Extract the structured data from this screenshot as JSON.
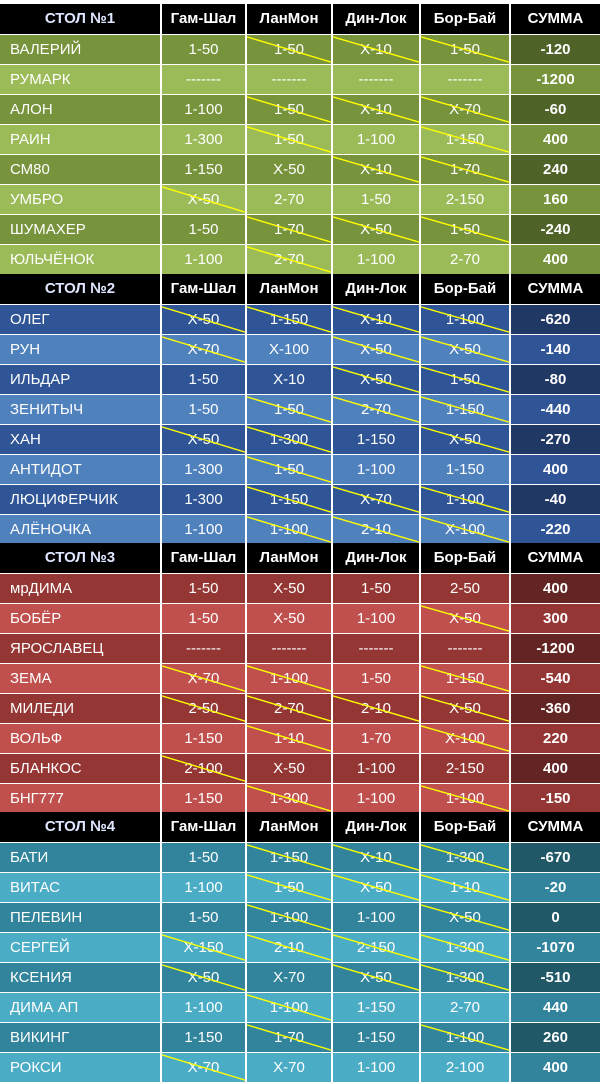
{
  "columns": [
    "Гам-Шал",
    "ЛанМон",
    "Дин-Лок",
    "Бор-Бай",
    "СУММА"
  ],
  "colors": {
    "green_dark": "#77933c",
    "green_light": "#9bbb59",
    "green_sum": "#4f6228",
    "blue_dark": "#2f5597",
    "blue_light": "#4f81bd",
    "blue_sum": "#1f3864",
    "red_dark": "#943634",
    "red_light": "#c0504d",
    "red_sum": "#632523",
    "teal_dark": "#31849b",
    "teal_light": "#4bacc6",
    "teal_sum": "#205867",
    "strike_line": "#ffff00"
  },
  "tables": [
    {
      "title": "СТОЛ №1",
      "theme": "green",
      "rows": [
        {
          "name": "ВАЛЕРИЙ",
          "cells": [
            "1-50",
            "1-50",
            "Х-10",
            "1-50"
          ],
          "struck": [
            false,
            true,
            true,
            true
          ],
          "sum": "-120"
        },
        {
          "name": "РУМАРК",
          "cells": [
            "-------",
            "-------",
            "-------",
            "-------"
          ],
          "struck": [
            false,
            false,
            false,
            false
          ],
          "sum": "-1200"
        },
        {
          "name": "АЛОН",
          "cells": [
            "1-100",
            "1-50",
            "Х-10",
            "Х-70"
          ],
          "struck": [
            false,
            true,
            true,
            true
          ],
          "sum": "-60"
        },
        {
          "name": "РАИН",
          "cells": [
            "1-300",
            "1-50",
            "1-100",
            "1-150"
          ],
          "struck": [
            false,
            true,
            false,
            true
          ],
          "sum": "400"
        },
        {
          "name": "СМ80",
          "cells": [
            "1-150",
            "Х-50",
            "Х-10",
            "1-70"
          ],
          "struck": [
            false,
            false,
            true,
            true
          ],
          "sum": "240"
        },
        {
          "name": "УМБРО",
          "cells": [
            "Х-50",
            "2-70",
            "1-50",
            "2-150"
          ],
          "struck": [
            true,
            false,
            false,
            false
          ],
          "sum": "160"
        },
        {
          "name": "ШУМАХЕР",
          "cells": [
            "1-50",
            "1-70",
            "Х-50",
            "1-50"
          ],
          "struck": [
            false,
            true,
            true,
            true
          ],
          "sum": "-240"
        },
        {
          "name": "ЮЛЬЧЁНОК",
          "cells": [
            "1-100",
            "2-70",
            "1-100",
            "2-70"
          ],
          "struck": [
            false,
            true,
            false,
            false
          ],
          "sum": "400"
        }
      ]
    },
    {
      "title": "СТОЛ №2",
      "theme": "blue",
      "rows": [
        {
          "name": "ОЛЕГ",
          "cells": [
            "Х-50",
            "1-150",
            "Х-10",
            "1-100"
          ],
          "struck": [
            true,
            true,
            true,
            true
          ],
          "sum": "-620"
        },
        {
          "name": "РУН",
          "cells": [
            "Х-70",
            "Х-100",
            "Х-50",
            "Х-50"
          ],
          "struck": [
            true,
            false,
            true,
            true
          ],
          "sum": "-140"
        },
        {
          "name": "ИЛЬДАР",
          "cells": [
            "1-50",
            "Х-10",
            "Х-50",
            "1-50"
          ],
          "struck": [
            false,
            false,
            true,
            true
          ],
          "sum": "-80"
        },
        {
          "name": "ЗЕНИТЫЧ",
          "cells": [
            "1-50",
            "1-50",
            "2-70",
            "1-150"
          ],
          "struck": [
            false,
            true,
            true,
            true
          ],
          "sum": "-440"
        },
        {
          "name": "ХАН",
          "cells": [
            "Х-50",
            "1-300",
            "1-150",
            "Х-50"
          ],
          "struck": [
            true,
            true,
            false,
            true
          ],
          "sum": "-270"
        },
        {
          "name": "АНТИДОТ",
          "cells": [
            "1-300",
            "1-50",
            "1-100",
            "1-150"
          ],
          "struck": [
            false,
            true,
            false,
            false
          ],
          "sum": "400"
        },
        {
          "name": "ЛЮЦИФЕРЧИК",
          "cells": [
            "1-300",
            "1-150",
            "Х-70",
            "1-100"
          ],
          "struck": [
            false,
            true,
            true,
            true
          ],
          "sum": "-40"
        },
        {
          "name": "АЛЁНОЧКА",
          "cells": [
            "1-100",
            "1-100",
            "2-10",
            "Х-100"
          ],
          "struck": [
            false,
            true,
            true,
            true
          ],
          "sum": "-220"
        }
      ]
    },
    {
      "title": "СТОЛ №3",
      "theme": "red",
      "rows": [
        {
          "name": "мрДИМА",
          "cells": [
            "1-50",
            "Х-50",
            "1-50",
            "2-50"
          ],
          "struck": [
            false,
            false,
            false,
            false
          ],
          "sum": "400"
        },
        {
          "name": "БОБЁР",
          "cells": [
            "1-50",
            "Х-50",
            "1-100",
            "Х-50"
          ],
          "struck": [
            false,
            false,
            false,
            true
          ],
          "sum": "300"
        },
        {
          "name": "ЯРОСЛАВЕЦ",
          "cells": [
            "-------",
            "-------",
            "-------",
            "-------"
          ],
          "struck": [
            false,
            false,
            false,
            false
          ],
          "sum": "-1200"
        },
        {
          "name": "ЗЕМА",
          "cells": [
            "Х-70",
            "1-100",
            "1-50",
            "1-150"
          ],
          "struck": [
            true,
            true,
            false,
            true
          ],
          "sum": "-540"
        },
        {
          "name": "МИЛЕДИ",
          "cells": [
            "2-50",
            "2-70",
            "2-10",
            "Х-50"
          ],
          "struck": [
            true,
            true,
            true,
            true
          ],
          "sum": "-360"
        },
        {
          "name": "ВОЛЬФ",
          "cells": [
            "1-150",
            "1-10",
            "1-70",
            "Х-100"
          ],
          "struck": [
            false,
            true,
            false,
            true
          ],
          "sum": "220"
        },
        {
          "name": "БЛАНКОС",
          "cells": [
            "2-100",
            "Х-50",
            "1-100",
            "2-150"
          ],
          "struck": [
            true,
            false,
            false,
            false
          ],
          "sum": "400"
        },
        {
          "name": "БНГ777",
          "cells": [
            "1-150",
            "1-300",
            "1-100",
            "1-100"
          ],
          "struck": [
            false,
            true,
            false,
            true
          ],
          "sum": "-150"
        }
      ]
    },
    {
      "title": "СТОЛ №4",
      "theme": "teal",
      "rows": [
        {
          "name": "БАТИ",
          "cells": [
            "1-50",
            "1-150",
            "Х-10",
            "1-300"
          ],
          "struck": [
            false,
            true,
            true,
            true
          ],
          "sum": "-670"
        },
        {
          "name": "ВИТАС",
          "cells": [
            "1-100",
            "1-50",
            "Х-50",
            "1-10"
          ],
          "struck": [
            false,
            true,
            true,
            true
          ],
          "sum": "-20"
        },
        {
          "name": "ПЕЛЕВИН",
          "cells": [
            "1-50",
            "1-100",
            "1-100",
            "Х-50"
          ],
          "struck": [
            false,
            true,
            false,
            true
          ],
          "sum": "0"
        },
        {
          "name": "СЕРГЕЙ",
          "cells": [
            "Х-150",
            "2-10",
            "2-150",
            "1-300"
          ],
          "struck": [
            true,
            true,
            true,
            true
          ],
          "sum": "-1070"
        },
        {
          "name": "КСЕНИЯ",
          "cells": [
            "Х-50",
            "Х-70",
            "Х-50",
            "1-300"
          ],
          "struck": [
            true,
            false,
            true,
            true
          ],
          "sum": "-510"
        },
        {
          "name": "ДИМА АП",
          "cells": [
            "1-100",
            "1-100",
            "1-150",
            "2-70"
          ],
          "struck": [
            false,
            true,
            false,
            false
          ],
          "sum": "440"
        },
        {
          "name": "ВИКИНГ",
          "cells": [
            "1-150",
            "1-70",
            "1-150",
            "1-100"
          ],
          "struck": [
            false,
            true,
            false,
            true
          ],
          "sum": "260"
        },
        {
          "name": "РОКСИ",
          "cells": [
            "Х-70",
            "Х-70",
            "1-100",
            "2-100"
          ],
          "struck": [
            true,
            false,
            false,
            false
          ],
          "sum": "400"
        }
      ]
    }
  ]
}
